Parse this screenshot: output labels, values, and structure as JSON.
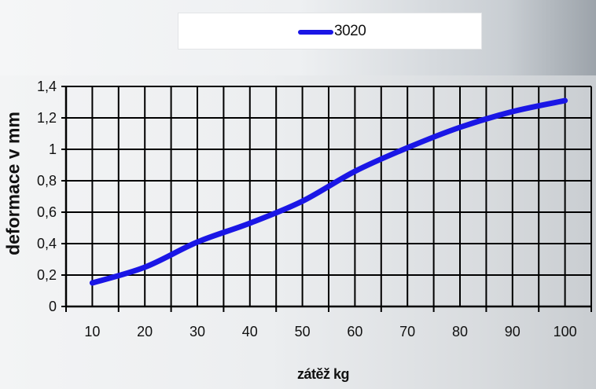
{
  "chart_data": {
    "type": "line",
    "title": "",
    "xlabel": "zátěž kg",
    "ylabel": "deformace v mm",
    "x": [
      10,
      20,
      30,
      40,
      50,
      60,
      70,
      80,
      90,
      100
    ],
    "categories": [
      "10",
      "20",
      "30",
      "40",
      "50",
      "60",
      "70",
      "80",
      "90",
      "100"
    ],
    "ylim": [
      0,
      1.4
    ],
    "yticks": [
      "0",
      "0,2",
      "0,4",
      "0,6",
      "0,8",
      "1",
      "1,2",
      "1,4"
    ],
    "series": [
      {
        "name": "3020",
        "color": "#1a16e6",
        "values": [
          0.15,
          0.25,
          0.41,
          0.53,
          0.67,
          0.86,
          1.01,
          1.14,
          1.24,
          1.31
        ]
      }
    ],
    "grid": true,
    "legend_position": "top-center"
  }
}
